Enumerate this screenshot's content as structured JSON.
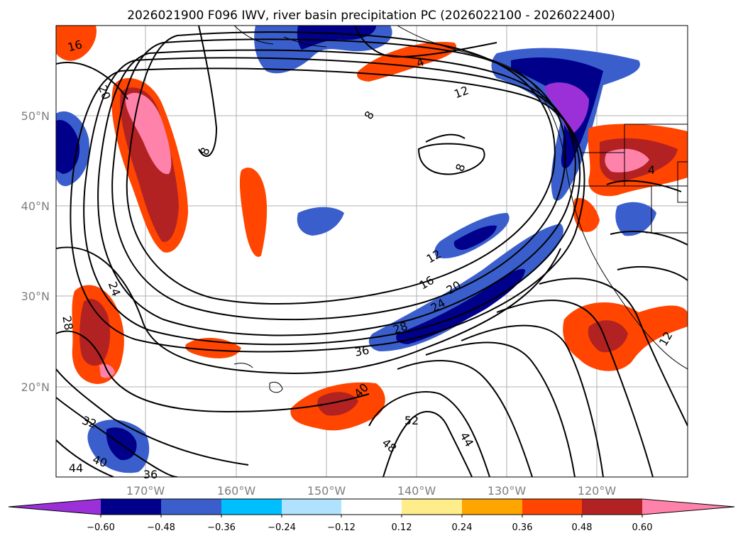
{
  "title": "2026021900 F096 IWV, river basin precipitation PC (2026022100 - 2026022400)",
  "map": {
    "lat_labels": [
      "50°N",
      "40°N",
      "30°N",
      "20°N"
    ],
    "lon_labels": [
      "170°W",
      "160°W",
      "150°W",
      "140°W",
      "130°W",
      "120°W"
    ],
    "contour_labels": [
      "16",
      "20",
      "4",
      "12",
      "8",
      "8",
      "8",
      "12",
      "16",
      "20",
      "24",
      "28",
      "36",
      "24",
      "28",
      "40",
      "32",
      "44",
      "40",
      "36",
      "52",
      "44",
      "48",
      "12",
      "4"
    ]
  },
  "colorbar": {
    "tick_labels": [
      "−0.60",
      "−0.48",
      "−0.36",
      "−0.24",
      "−0.12",
      "0.12",
      "0.24",
      "0.36",
      "0.48",
      "0.60"
    ],
    "colors": [
      "#9b30d8",
      "#00008b",
      "#3a5fcd",
      "#00bfff",
      "#b0e2ff",
      "#ffffff",
      "#ffec8b",
      "#ffa500",
      "#ff4500",
      "#b22222",
      "#ff82ab",
      "#ff82ab"
    ]
  }
}
